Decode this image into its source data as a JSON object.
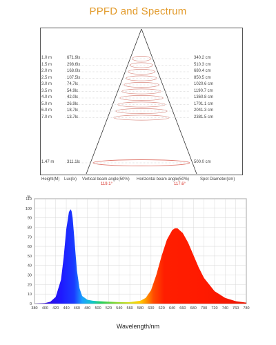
{
  "title": "PPFD and Spectrum",
  "beam": {
    "rows": [
      {
        "height": "1.0 m",
        "lux": "671.9lx",
        "spot": "340.2 cm"
      },
      {
        "height": "1.5 m",
        "lux": "298.6lx",
        "spot": "510.3 cm"
      },
      {
        "height": "2.0 m",
        "lux": "168.0lx",
        "spot": "680.4 cm"
      },
      {
        "height": "2.5 m",
        "lux": "107.5lx",
        "spot": "850.5 cm"
      },
      {
        "height": "3.0 m",
        "lux": "74.7lx",
        "spot": "1020.6 cm"
      },
      {
        "height": "3.5 m",
        "lux": "54.9lx",
        "spot": "1190.7 cm"
      },
      {
        "height": "4.0 m",
        "lux": "42.0lx",
        "spot": "1360.8 cm"
      },
      {
        "height": "5.0 m",
        "lux": "26.9lx",
        "spot": "1701.1 cm"
      },
      {
        "height": "6.0 m",
        "lux": "18.7lx",
        "spot": "2041.3 cm"
      },
      {
        "height": "7.0 m",
        "lux": "13.7lx",
        "spot": "2381.5 cm"
      }
    ],
    "highlight": {
      "height": "1.47 m",
      "lux": "311.1lx",
      "spot": "500.0 cm"
    },
    "captions": {
      "height": "Height(M)",
      "lux": "Lux(lx)",
      "vertical": "Vertical beam angle(50%)",
      "horizontal": "Horizontal beam angle(50%)",
      "spot": "Spot Diameter(cm)"
    },
    "vertical_angle": "119.1°",
    "horizontal_angle": "117.6°"
  },
  "chart_data": {
    "type": "area",
    "title": "",
    "xlabel": "Wavelength/nm",
    "ylabel": "%",
    "xlim": [
      380,
      780
    ],
    "ylim": [
      0,
      110
    ],
    "x_ticks": [
      380,
      400,
      420,
      440,
      460,
      480,
      500,
      520,
      540,
      560,
      580,
      600,
      620,
      640,
      660,
      680,
      700,
      720,
      740,
      760,
      780
    ],
    "y_ticks": [
      0,
      10,
      20,
      30,
      40,
      50,
      60,
      70,
      80,
      90,
      100,
      110
    ],
    "grid": true,
    "x": [
      380,
      400,
      410,
      420,
      430,
      435,
      440,
      445,
      448,
      450,
      452,
      455,
      460,
      465,
      470,
      480,
      490,
      500,
      520,
      540,
      560,
      580,
      590,
      600,
      610,
      620,
      630,
      640,
      645,
      650,
      660,
      670,
      680,
      690,
      700,
      720,
      740,
      760,
      780
    ],
    "y": [
      0,
      0.5,
      2,
      7,
      25,
      48,
      78,
      96,
      99,
      97,
      90,
      70,
      35,
      16,
      8,
      4,
      3,
      2.5,
      2,
      1.5,
      1.5,
      3,
      6,
      14,
      30,
      50,
      67,
      77,
      79,
      79,
      74,
      64,
      51,
      38,
      27,
      13,
      6,
      2.5,
      1
    ]
  },
  "colors": {
    "title": "#e29a2a",
    "angle_text": "#d9342b",
    "highlight_ellipse": "#e07a70",
    "blue_peak": "#1a3cff",
    "red_peak": "#ff1e00"
  }
}
